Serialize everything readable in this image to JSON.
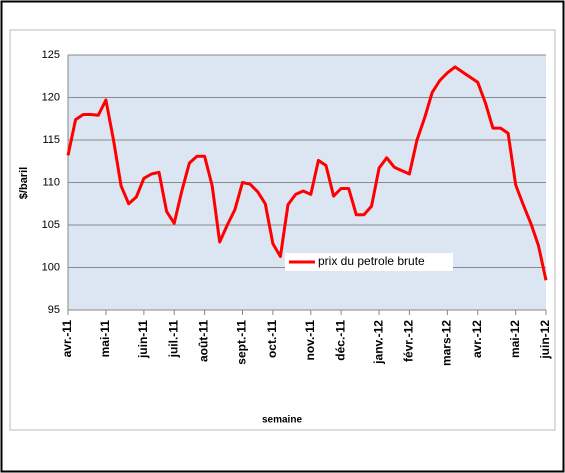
{
  "chart_data": {
    "type": "line",
    "y_label": "$/baril",
    "x_label": "semaine",
    "categories": [
      "avr.-11",
      null,
      null,
      null,
      null,
      "mai-11",
      null,
      null,
      null,
      null,
      "juin-11",
      null,
      null,
      null,
      "juil.-11",
      null,
      null,
      null,
      "août-11",
      null,
      null,
      null,
      null,
      "sept.-11",
      null,
      null,
      null,
      "oct.-11",
      null,
      null,
      null,
      null,
      "nov.-11",
      null,
      null,
      null,
      "déc.-11",
      null,
      null,
      null,
      null,
      "janv.-12",
      null,
      null,
      null,
      "févr.-12",
      null,
      null,
      null,
      null,
      "mars-12",
      null,
      null,
      null,
      "avr.-12",
      null,
      null,
      null,
      null,
      "mai-12",
      null,
      null,
      null,
      "juin-12"
    ],
    "series": [
      {
        "name": "prix du petrole brute",
        "color": "#ff0000",
        "values": [
          113.2,
          117.4,
          118,
          118,
          117.9,
          119.7,
          115,
          109.6,
          107.5,
          108.3,
          110.5,
          111,
          111.2,
          106.6,
          105.2,
          109,
          112.3,
          113.1,
          113.1,
          109.6,
          103,
          105,
          106.8,
          110,
          109.8,
          108.9,
          107.5,
          102.8,
          101.3,
          107.4,
          108.6,
          109,
          108.6,
          112.6,
          112,
          108.4,
          109.3,
          109.3,
          106.2,
          106.2,
          107.2,
          111.7,
          112.9,
          111.8,
          111.4,
          111,
          115,
          117.6,
          120.6,
          122,
          122.9,
          123.6,
          123,
          122.4,
          121.8,
          119.4,
          116.4,
          116.4,
          115.8,
          109.7,
          107.4,
          105.2,
          102.6,
          98.5
        ]
      }
    ],
    "ylim": [
      95,
      125
    ],
    "yticks": [
      95,
      100,
      105,
      110,
      115,
      120,
      125
    ],
    "grid": true
  }
}
